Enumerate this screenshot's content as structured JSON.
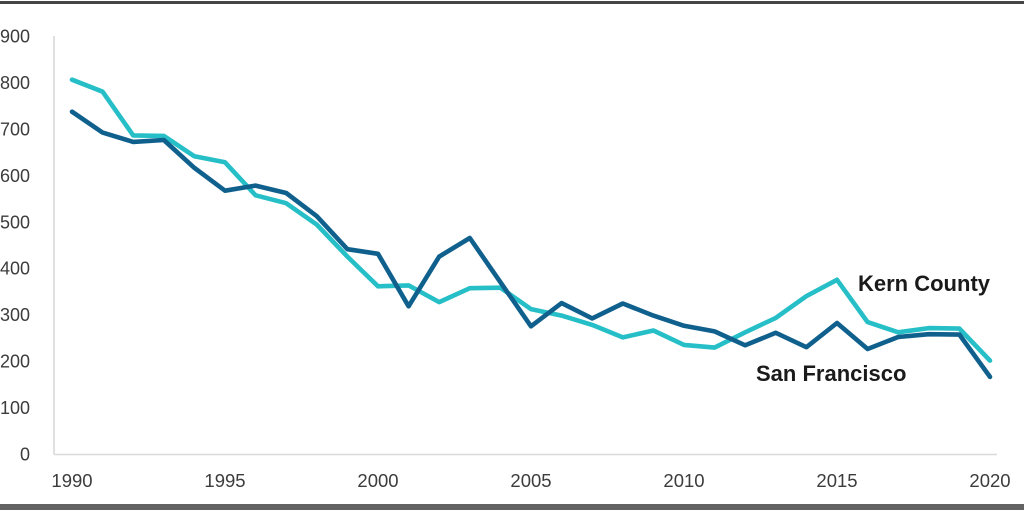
{
  "chart_data": {
    "type": "line",
    "title": "",
    "xlabel": "",
    "ylabel": "",
    "x": [
      1990,
      1991,
      1992,
      1993,
      1994,
      1995,
      1996,
      1997,
      1998,
      1999,
      2000,
      2001,
      2002,
      2003,
      2004,
      2005,
      2006,
      2007,
      2008,
      2009,
      2010,
      2011,
      2012,
      2013,
      2014,
      2015,
      2016,
      2017,
      2018,
      2019,
      2020
    ],
    "series": [
      {
        "name": "Kern County",
        "color": "#26BFC7",
        "values": [
          806,
          780,
          686,
          685,
          641,
          628,
          557,
          540,
          494,
          425,
          361,
          363,
          327,
          357,
          358,
          312,
          298,
          278,
          251,
          266,
          235,
          229,
          262,
          293,
          340,
          375,
          284,
          262,
          271,
          270,
          201
        ]
      },
      {
        "name": "San Francisco",
        "color": "#10608E",
        "values": [
          737,
          692,
          672,
          676,
          616,
          567,
          578,
          562,
          512,
          441,
          431,
          318,
          425,
          465,
          370,
          275,
          325,
          292,
          324,
          298,
          276,
          264,
          234,
          261,
          230,
          282,
          226,
          252,
          258,
          257,
          166
        ]
      }
    ],
    "ylim": [
      0,
      900
    ],
    "xlim": [
      1990,
      2020
    ],
    "y_ticks": [
      "0",
      "100",
      "200",
      "300",
      "400",
      "500",
      "600",
      "700",
      "800",
      "900"
    ],
    "x_ticks": [
      "1990",
      "1995",
      "2000",
      "2005",
      "2010",
      "2015",
      "2020"
    ],
    "grid": "off",
    "legend": "inline-labels-near-lines"
  },
  "frame": {
    "top_border_color": "#454545",
    "bottom_border_color": "#636363",
    "axis_line_color": "#D9D9D9",
    "tick_label_color": "#3C3C3C"
  }
}
